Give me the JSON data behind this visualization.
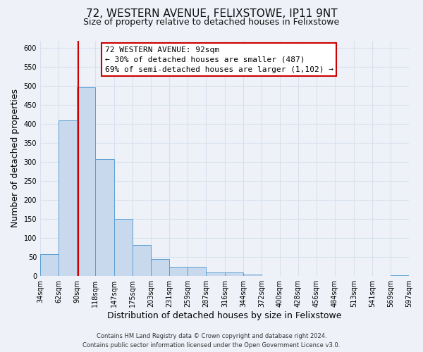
{
  "title": "72, WESTERN AVENUE, FELIXSTOWE, IP11 9NT",
  "subtitle": "Size of property relative to detached houses in Felixstowe",
  "xlabel": "Distribution of detached houses by size in Felixstowe",
  "ylabel": "Number of detached properties",
  "bin_edges": [
    34,
    62,
    90,
    118,
    147,
    175,
    203,
    231,
    259,
    287,
    316,
    344,
    372,
    400,
    428,
    456,
    484,
    513,
    541,
    569,
    597
  ],
  "bar_heights": [
    57,
    410,
    497,
    307,
    150,
    82,
    44,
    25,
    25,
    10,
    10,
    5,
    0,
    0,
    0,
    0,
    0,
    0,
    0,
    3
  ],
  "bar_color": "#c8d9ee",
  "bar_edge_color": "#5a9fd4",
  "reference_line_x": 92,
  "reference_line_color": "#cc0000",
  "ylim": [
    0,
    620
  ],
  "yticks": [
    0,
    50,
    100,
    150,
    200,
    250,
    300,
    350,
    400,
    450,
    500,
    550,
    600
  ],
  "annotation_title": "72 WESTERN AVENUE: 92sqm",
  "annotation_line1": "← 30% of detached houses are smaller (487)",
  "annotation_line2": "69% of semi-detached houses are larger (1,102) →",
  "annotation_box_facecolor": "#ffffff",
  "annotation_box_edgecolor": "#cc0000",
  "footer_line1": "Contains HM Land Registry data © Crown copyright and database right 2024.",
  "footer_line2": "Contains public sector information licensed under the Open Government Licence v3.0.",
  "tick_labels": [
    "34sqm",
    "62sqm",
    "90sqm",
    "118sqm",
    "147sqm",
    "175sqm",
    "203sqm",
    "231sqm",
    "259sqm",
    "287sqm",
    "316sqm",
    "344sqm",
    "372sqm",
    "400sqm",
    "428sqm",
    "456sqm",
    "484sqm",
    "513sqm",
    "541sqm",
    "569sqm",
    "597sqm"
  ],
  "background_color": "#eef2f8",
  "grid_color": "#d8e0ee",
  "title_fontsize": 11,
  "subtitle_fontsize": 9,
  "axis_label_fontsize": 9,
  "tick_fontsize": 7,
  "annotation_fontsize": 8,
  "footer_fontsize": 6
}
